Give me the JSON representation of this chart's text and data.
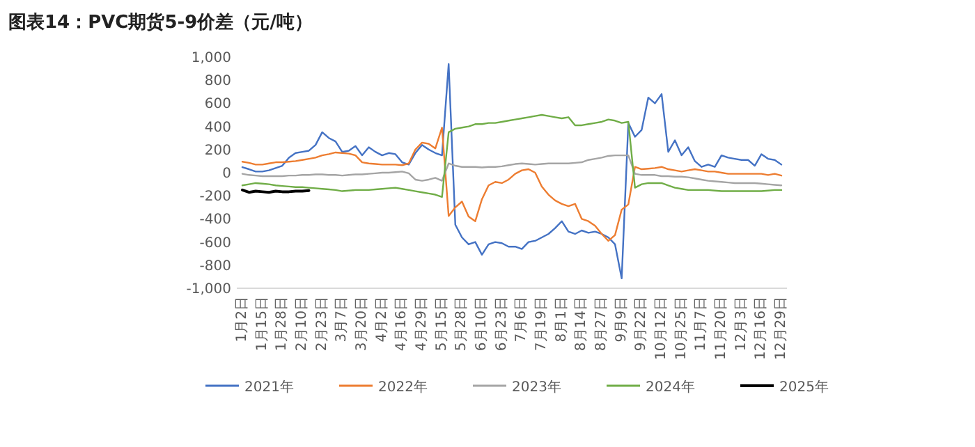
{
  "chart_data": {
    "type": "line",
    "title": "图表14：PVC期货5-9价差（元/吨）",
    "categories": [
      "1月2日",
      null,
      null,
      "1月15日",
      null,
      null,
      "1月28日",
      null,
      null,
      "2月10日",
      null,
      null,
      "2月23日",
      null,
      null,
      "3月7日",
      null,
      null,
      "3月20日",
      null,
      null,
      "4月2日",
      null,
      null,
      "4月16日",
      null,
      null,
      "4月29日",
      null,
      null,
      "5月15日",
      null,
      null,
      "5月28日",
      null,
      null,
      "6月10日",
      null,
      null,
      "6月23日",
      null,
      null,
      "7月6日",
      null,
      null,
      "7月19日",
      null,
      null,
      "8月1日",
      null,
      null,
      "8月14日",
      null,
      null,
      "8月27日",
      null,
      null,
      "9月9日",
      null,
      null,
      "9月22日",
      null,
      null,
      "10月12日",
      null,
      null,
      "10月25日",
      null,
      null,
      "11月7日",
      null,
      null,
      "11月20日",
      null,
      null,
      "12月3日",
      null,
      null,
      "12月16日",
      null,
      null,
      "12月29日"
    ],
    "ylim": [
      -1000,
      1000
    ],
    "yticks": [
      {
        "value": -1000,
        "label": "-1,000"
      },
      -800,
      -600,
      -400,
      -200,
      0,
      200,
      400,
      600,
      800,
      {
        "value": 1000,
        "label": "1,000"
      }
    ],
    "legend": "bottom",
    "series": [
      {
        "name": "2021年",
        "color": "#4472c4",
        "values": [
          48,
          30,
          10,
          10,
          20,
          40,
          60,
          130,
          170,
          180,
          190,
          240,
          350,
          300,
          270,
          180,
          190,
          230,
          150,
          220,
          180,
          150,
          170,
          160,
          90,
          70,
          170,
          240,
          200,
          170,
          150,
          940,
          -450,
          -560,
          -620,
          -600,
          -710,
          -620,
          -600,
          -610,
          -640,
          -640,
          -660,
          -600,
          -590,
          -560,
          -530,
          -480,
          -420,
          -510,
          -530,
          -500,
          -520,
          -510,
          -530,
          -560,
          -620,
          -915,
          430,
          310,
          370,
          650,
          600,
          680,
          180,
          280,
          150,
          220,
          100,
          50,
          70,
          50,
          150,
          130,
          120,
          110,
          110,
          60,
          160,
          120,
          110,
          70
        ]
      },
      {
        "name": "2022年",
        "color": "#ed7d31",
        "values": [
          95,
          85,
          70,
          70,
          80,
          90,
          90,
          95,
          100,
          110,
          120,
          130,
          150,
          160,
          175,
          170,
          165,
          150,
          90,
          80,
          75,
          70,
          70,
          70,
          65,
          80,
          200,
          260,
          250,
          210,
          390,
          -375,
          -300,
          -250,
          -380,
          -420,
          -230,
          -110,
          -80,
          -90,
          -60,
          -10,
          20,
          30,
          0,
          -120,
          -190,
          -240,
          -270,
          -290,
          -270,
          -400,
          -420,
          -460,
          -530,
          -590,
          -540,
          -320,
          -275,
          50,
          30,
          35,
          40,
          50,
          30,
          20,
          10,
          20,
          30,
          20,
          10,
          10,
          0,
          -10,
          -10,
          -10,
          -10,
          -10,
          -10,
          -20,
          -10,
          -25
        ]
      },
      {
        "name": "2023年",
        "color": "#a5a5a5",
        "values": [
          -10,
          -20,
          -25,
          -30,
          -30,
          -30,
          -30,
          -25,
          -25,
          -20,
          -20,
          -15,
          -15,
          -20,
          -20,
          -25,
          -20,
          -15,
          -15,
          -10,
          -5,
          0,
          0,
          5,
          10,
          -5,
          -60,
          -70,
          -60,
          -45,
          -70,
          80,
          60,
          50,
          50,
          50,
          45,
          50,
          50,
          55,
          65,
          75,
          80,
          75,
          70,
          75,
          80,
          80,
          80,
          80,
          85,
          90,
          110,
          120,
          130,
          145,
          150,
          150,
          150,
          -10,
          -20,
          -20,
          -20,
          -30,
          -30,
          -35,
          -35,
          -40,
          -50,
          -60,
          -70,
          -75,
          -80,
          -85,
          -90,
          -90,
          -90,
          -90,
          -95,
          -100,
          -105,
          -110
        ]
      },
      {
        "name": "2024年",
        "color": "#70ad47",
        "values": [
          -110,
          -100,
          -90,
          -95,
          -100,
          -110,
          -115,
          -120,
          -125,
          -125,
          -130,
          -135,
          -140,
          -145,
          -150,
          -160,
          -155,
          -150,
          -150,
          -150,
          -145,
          -140,
          -135,
          -130,
          -140,
          -150,
          -160,
          -170,
          -180,
          -190,
          -210,
          350,
          380,
          390,
          400,
          420,
          420,
          430,
          430,
          440,
          450,
          460,
          470,
          480,
          490,
          500,
          490,
          480,
          470,
          480,
          410,
          410,
          420,
          430,
          440,
          460,
          450,
          430,
          440,
          -130,
          -100,
          -90,
          -90,
          -90,
          -110,
          -130,
          -140,
          -150,
          -150,
          -150,
          -150,
          -155,
          -160,
          -160,
          -160,
          -160,
          -160,
          -160,
          -160,
          -155,
          -150,
          -150
        ]
      },
      {
        "name": "2025年",
        "color": "#000000",
        "values": [
          -150,
          -170,
          -160,
          -165,
          -170,
          -160,
          -165,
          -165,
          -160,
          -160,
          -155,
          null,
          null,
          null,
          null,
          null,
          null,
          null,
          null,
          null,
          null,
          null,
          null,
          null,
          null,
          null,
          null,
          null,
          null,
          null,
          null,
          null,
          null,
          null,
          null,
          null,
          null,
          null,
          null,
          null,
          null,
          null,
          null,
          null,
          null,
          null,
          null,
          null,
          null,
          null,
          null,
          null,
          null,
          null,
          null,
          null,
          null,
          null,
          null,
          null,
          null,
          null,
          null,
          null,
          null,
          null,
          null,
          null,
          null,
          null,
          null,
          null,
          null,
          null,
          null,
          null,
          null,
          null,
          null,
          null,
          null,
          null
        ]
      }
    ]
  }
}
